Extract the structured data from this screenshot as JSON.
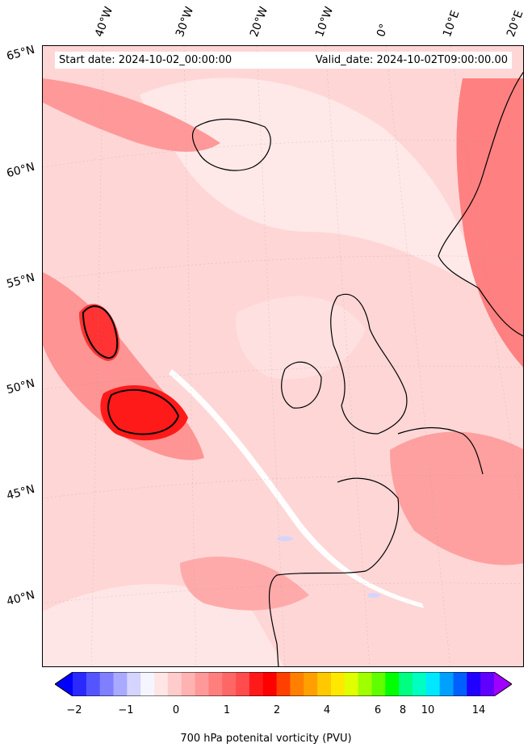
{
  "info": {
    "start_label": "Start date: 2024-10-02_00:00:00",
    "valid_label": "Valid_date: 2024-10-02T09:00:00.00"
  },
  "longitude_labels": [
    "40°W",
    "30°W",
    "20°W",
    "10°W",
    "0°",
    "10°E",
    "20°E"
  ],
  "latitude_labels": [
    "65°N",
    "60°N",
    "55°N",
    "50°N",
    "45°N",
    "40°N"
  ],
  "colorbar": {
    "label": "700 hPa potenital vorticity (PVU)",
    "ticks": [
      "−2",
      "−1",
      "0",
      "1",
      "2",
      "4",
      "6",
      "8",
      "10",
      "14"
    ],
    "colors": [
      "#0000ff",
      "#2a2aff",
      "#5555ff",
      "#7f7fff",
      "#a9a9ff",
      "#d4d4ff",
      "#f5f5ff",
      "#ffe5e5",
      "#ffcccc",
      "#ffb2b2",
      "#ff9999",
      "#ff7f7f",
      "#ff6666",
      "#ff4c4c",
      "#ff1a1a",
      "#ff0000",
      "#ff4000",
      "#ff8000",
      "#ffa000",
      "#ffc800",
      "#ffe800",
      "#e0ff00",
      "#a0ff00",
      "#60ff00",
      "#00ff00",
      "#00ff80",
      "#00ffc0",
      "#00e8ff",
      "#00a0ff",
      "#0060ff",
      "#2000ff",
      "#6000ff",
      "#a000ff"
    ]
  }
}
